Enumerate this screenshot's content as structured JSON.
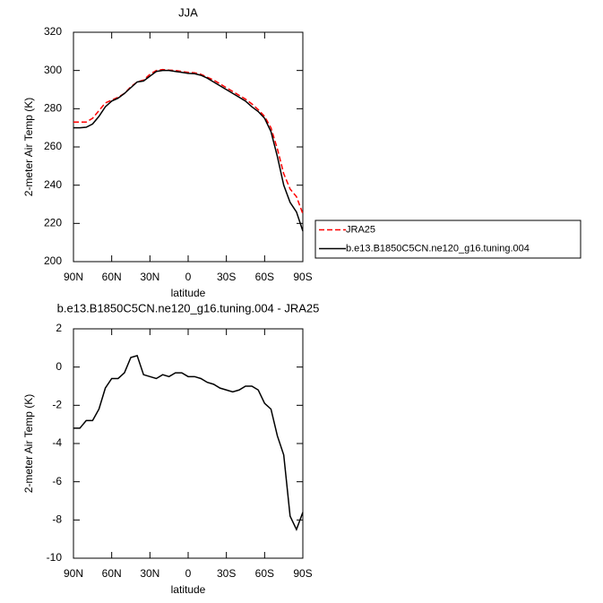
{
  "chart_data": [
    {
      "type": "line",
      "title": "JJA",
      "xlabel": "latitude",
      "ylabel": "2-meter Air Temp (K)",
      "x": [
        90,
        85,
        80,
        75,
        70,
        65,
        60,
        55,
        50,
        45,
        40,
        35,
        30,
        25,
        20,
        15,
        10,
        5,
        0,
        -5,
        -10,
        -15,
        -20,
        -25,
        -30,
        -35,
        -40,
        -45,
        -50,
        -55,
        -60,
        -65,
        -70,
        -75,
        -80,
        -85,
        -90
      ],
      "xlim": [
        90,
        -90
      ],
      "xticks": [
        {
          "value": 90,
          "label": "90N"
        },
        {
          "value": 60,
          "label": "60N"
        },
        {
          "value": 30,
          "label": "30N"
        },
        0,
        {
          "value": -30,
          "label": "30S"
        },
        {
          "value": -60,
          "label": "60S"
        },
        {
          "value": -90,
          "label": "90S"
        }
      ],
      "ylim": [
        200,
        320
      ],
      "yticks": [
        200,
        220,
        240,
        260,
        280,
        300,
        320
      ],
      "legend": "right",
      "series": [
        {
          "name": "JRA25",
          "color": "#ff0000",
          "dash": true,
          "values": [
            273,
            273,
            273,
            275,
            279,
            283,
            284.5,
            286,
            288,
            291.5,
            294,
            295,
            298,
            300,
            300.5,
            300.2,
            300,
            299.5,
            299,
            298.8,
            298,
            296.5,
            295,
            293,
            291,
            289,
            287,
            285,
            282.5,
            279.5,
            276,
            270,
            259,
            246,
            238,
            234,
            225
          ]
        },
        {
          "name": "b.e13.B1850C5CN.ne120_g16.tuning.004",
          "color": "#000000",
          "dash": false,
          "values": [
            270,
            270,
            270.3,
            272,
            276,
            281,
            284,
            285.5,
            288,
            291,
            294,
            294.5,
            297,
            299.5,
            300,
            300,
            299.5,
            299,
            298.5,
            298.3,
            297.5,
            296,
            294,
            292,
            290,
            288,
            286,
            284,
            281,
            278.5,
            275,
            268,
            255,
            240,
            231,
            226,
            216
          ]
        }
      ]
    },
    {
      "type": "line",
      "title": "b.e13.B1850C5CN.ne120_g16.tuning.004 - JRA25",
      "xlabel": "latitude",
      "ylabel": "2-meter Air Temp (K)",
      "x": [
        90,
        85,
        80,
        75,
        70,
        65,
        60,
        55,
        50,
        45,
        40,
        35,
        30,
        25,
        20,
        15,
        10,
        5,
        0,
        -5,
        -10,
        -15,
        -20,
        -25,
        -30,
        -35,
        -40,
        -45,
        -50,
        -55,
        -60,
        -65,
        -70,
        -75,
        -80,
        -85,
        -90
      ],
      "xlim": [
        90,
        -90
      ],
      "xticks": [
        {
          "value": 90,
          "label": "90N"
        },
        {
          "value": 60,
          "label": "60N"
        },
        {
          "value": 30,
          "label": "30N"
        },
        0,
        {
          "value": -30,
          "label": "30S"
        },
        {
          "value": -60,
          "label": "60S"
        },
        {
          "value": -90,
          "label": "90S"
        }
      ],
      "ylim": [
        -10,
        2
      ],
      "yticks": [
        -10,
        -8,
        -6,
        -4,
        -2,
        0,
        2
      ],
      "color": "#000000",
      "values": [
        -3.2,
        -3.2,
        -2.8,
        -2.8,
        -2.2,
        -1.1,
        -0.6,
        -0.6,
        -0.3,
        0.5,
        0.6,
        -0.4,
        -0.5,
        -0.6,
        -0.4,
        -0.5,
        -0.3,
        -0.3,
        -0.5,
        -0.5,
        -0.6,
        -0.8,
        -0.9,
        -1.1,
        -1.2,
        -1.3,
        -1.2,
        -1.0,
        -1.0,
        -1.2,
        -1.9,
        -2.2,
        -3.6,
        -4.6,
        -7.8,
        -8.5,
        -7.6
      ]
    }
  ]
}
